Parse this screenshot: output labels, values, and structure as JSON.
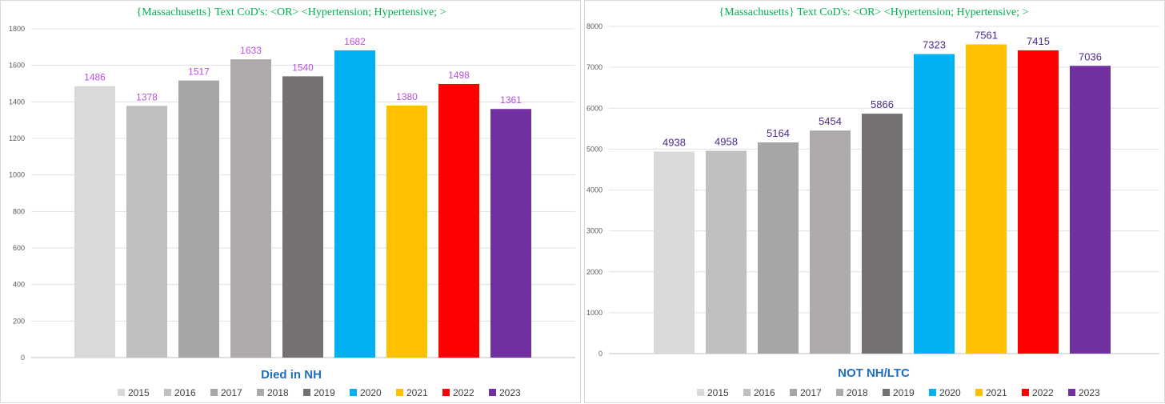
{
  "colors": [
    "#d9d9d9",
    "#bfbfbf",
    "#a6a6a6",
    "#aeaaaa",
    "#767171",
    "#00b0f0",
    "#ffc000",
    "#ff0000",
    "#7030a0"
  ],
  "chart_data": [
    {
      "type": "bar",
      "title": "{Massachusetts}   Text CoD's: <OR> <Hypertension;  Hypertensive;  >",
      "subtitle": "Died in NH",
      "categories": [
        "2015",
        "2016",
        "2017",
        "2018",
        "2019",
        "2020",
        "2021",
        "2022",
        "2023"
      ],
      "values": [
        1486,
        1378,
        1517,
        1633,
        1540,
        1682,
        1380,
        1498,
        1361
      ],
      "yticks": [
        0,
        200,
        400,
        600,
        800,
        1000,
        1200,
        1400,
        1600,
        1800
      ],
      "ylim": [
        0,
        1800
      ],
      "label_color": "#b84fe0",
      "legend": [
        "2015",
        "2016",
        "2017",
        "2018",
        "2019",
        "2020",
        "2021",
        "2022",
        "2023"
      ],
      "legend_position": "bottom",
      "grid": true
    },
    {
      "type": "bar",
      "title": "{Massachusetts}   Text CoD's: <OR> <Hypertension;  Hypertensive;  >",
      "subtitle": "NOT NH/LTC",
      "categories": [
        "2015",
        "2016",
        "2017",
        "2018",
        "2019",
        "2020",
        "2021",
        "2022",
        "2023"
      ],
      "values": [
        4938,
        4958,
        5164,
        5454,
        5866,
        7323,
        7561,
        7415,
        7036
      ],
      "yticks": [
        0,
        1000,
        2000,
        3000,
        4000,
        5000,
        6000,
        7000,
        8000
      ],
      "ylim": [
        0,
        8000
      ],
      "label_color": "#4b2a8c",
      "legend": [
        "2015",
        "2016",
        "2017",
        "2018",
        "2019",
        "2020",
        "2021",
        "2022",
        "2023"
      ],
      "legend_position": "bottom",
      "grid": true
    }
  ]
}
